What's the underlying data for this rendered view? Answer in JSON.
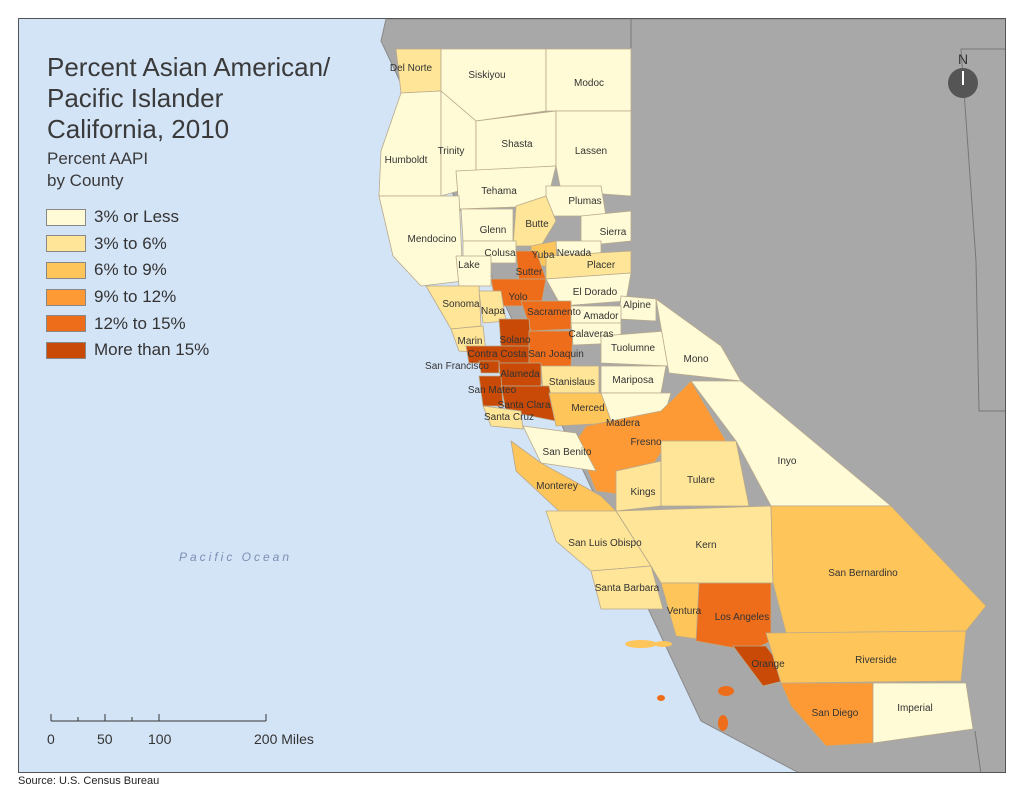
{
  "title_lines": [
    "Percent Asian American/",
    "Pacific Islander",
    "California, 2010"
  ],
  "subtitle_lines": [
    "Percent AAPI",
    "by County"
  ],
  "legend": [
    {
      "label": "3% or Less",
      "color": "#fffbd6"
    },
    {
      "label": "3% to 6%",
      "color": "#fee597"
    },
    {
      "label": "6% to 9%",
      "color": "#fec55a"
    },
    {
      "label": "9% to 12%",
      "color": "#fd9a35"
    },
    {
      "label": "12% to 15%",
      "color": "#ee6d1b"
    },
    {
      "label": "More than 15%",
      "color": "#c84a06"
    }
  ],
  "north_label": "N",
  "ocean_label": "Pacific Ocean",
  "scale_labels": [
    "0",
    "50",
    "100",
    "200 Miles"
  ],
  "source": "Source: U.S. Census Bureau",
  "counties": [
    {
      "name": "Del Norte",
      "class": 1
    },
    {
      "name": "Siskiyou",
      "class": 0
    },
    {
      "name": "Modoc",
      "class": 0
    },
    {
      "name": "Humboldt",
      "class": 0
    },
    {
      "name": "Trinity",
      "class": 0
    },
    {
      "name": "Shasta",
      "class": 0
    },
    {
      "name": "Lassen",
      "class": 0
    },
    {
      "name": "Tehama",
      "class": 0
    },
    {
      "name": "Plumas",
      "class": 0
    },
    {
      "name": "Butte",
      "class": 1
    },
    {
      "name": "Glenn",
      "class": 0
    },
    {
      "name": "Sierra",
      "class": 0
    },
    {
      "name": "Mendocino",
      "class": 0
    },
    {
      "name": "Colusa",
      "class": 0
    },
    {
      "name": "Yuba",
      "class": 2
    },
    {
      "name": "Nevada",
      "class": 0
    },
    {
      "name": "Lake",
      "class": 0
    },
    {
      "name": "Sutter",
      "class": 4
    },
    {
      "name": "Placer",
      "class": 1
    },
    {
      "name": "Yolo",
      "class": 4
    },
    {
      "name": "El Dorado",
      "class": 0
    },
    {
      "name": "Sonoma",
      "class": 1
    },
    {
      "name": "Napa",
      "class": 1
    },
    {
      "name": "Sacramento",
      "class": 4
    },
    {
      "name": "Alpine",
      "class": 0
    },
    {
      "name": "Amador",
      "class": 0
    },
    {
      "name": "Marin",
      "class": 1
    },
    {
      "name": "Solano",
      "class": 5
    },
    {
      "name": "Calaveras",
      "class": 0
    },
    {
      "name": "Contra Costa",
      "class": 5
    },
    {
      "name": "San Joaquin",
      "class": 4
    },
    {
      "name": "Tuolumne",
      "class": 0
    },
    {
      "name": "Mono",
      "class": 0
    },
    {
      "name": "San Francisco",
      "class": 5
    },
    {
      "name": "Alameda",
      "class": 5
    },
    {
      "name": "Stanislaus",
      "class": 1
    },
    {
      "name": "Mariposa",
      "class": 0
    },
    {
      "name": "San Mateo",
      "class": 5
    },
    {
      "name": "Santa Clara",
      "class": 5
    },
    {
      "name": "Santa Cruz",
      "class": 1
    },
    {
      "name": "Merced",
      "class": 2
    },
    {
      "name": "Madera",
      "class": 0
    },
    {
      "name": "Fresno",
      "class": 3
    },
    {
      "name": "San Benito",
      "class": 0
    },
    {
      "name": "Inyo",
      "class": 0
    },
    {
      "name": "Monterey",
      "class": 2
    },
    {
      "name": "Kings",
      "class": 1
    },
    {
      "name": "Tulare",
      "class": 1
    },
    {
      "name": "San Luis Obispo",
      "class": 1
    },
    {
      "name": "Kern",
      "class": 1
    },
    {
      "name": "San Bernardino",
      "class": 2
    },
    {
      "name": "Santa Barbara",
      "class": 1
    },
    {
      "name": "Ventura",
      "class": 2
    },
    {
      "name": "Los Angeles",
      "class": 4
    },
    {
      "name": "Orange",
      "class": 5
    },
    {
      "name": "Riverside",
      "class": 2
    },
    {
      "name": "San Diego",
      "class": 3
    },
    {
      "name": "Imperial",
      "class": 0
    }
  ]
}
